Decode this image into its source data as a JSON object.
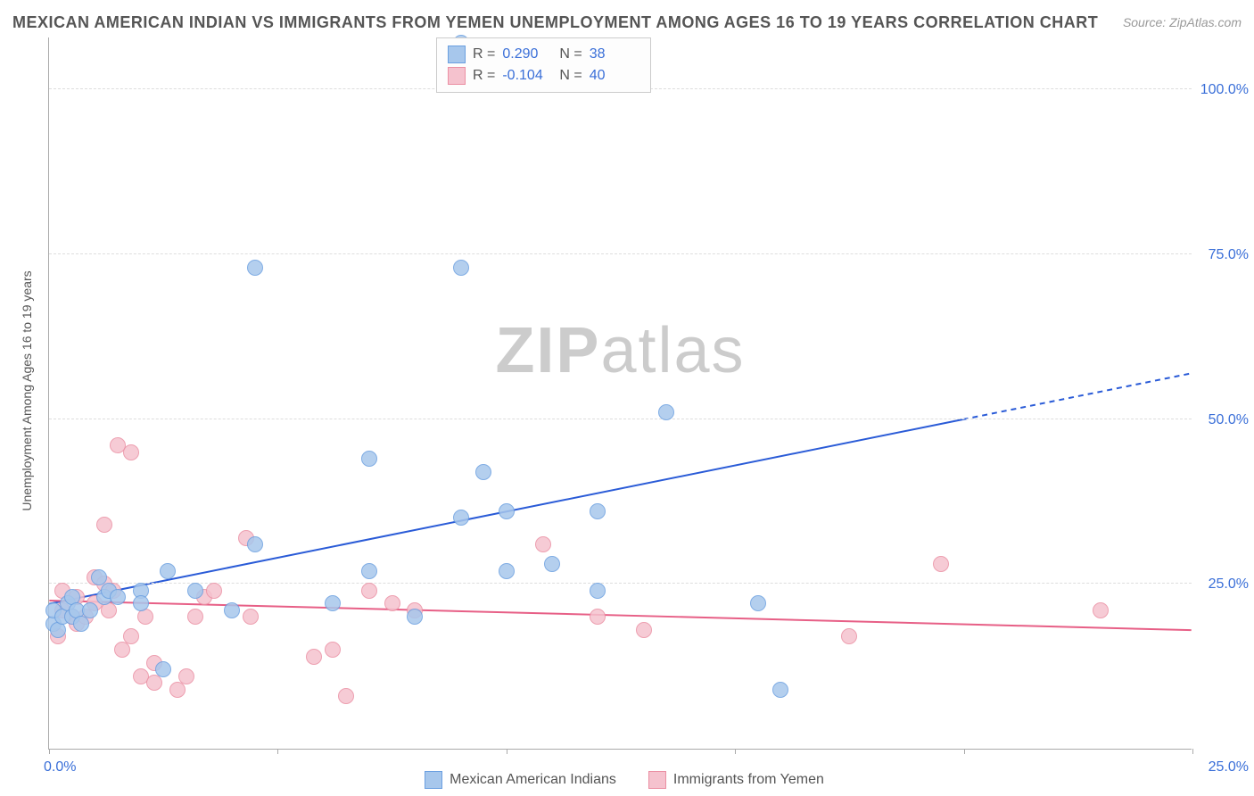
{
  "header": {
    "title": "MEXICAN AMERICAN INDIAN VS IMMIGRANTS FROM YEMEN UNEMPLOYMENT AMONG AGES 16 TO 19 YEARS CORRELATION CHART",
    "source": "Source: ZipAtlas.com"
  },
  "watermark": {
    "zip": "ZIP",
    "atlas": "atlas"
  },
  "axes": {
    "ylabel": "Unemployment Among Ages 16 to 19 years",
    "xlim": [
      0,
      25
    ],
    "ylim": [
      0,
      108
    ],
    "ytick_labels": [
      "25.0%",
      "50.0%",
      "75.0%",
      "100.0%"
    ],
    "ytick_values": [
      25,
      50,
      75,
      100
    ],
    "xtick_values": [
      0,
      5,
      10,
      15,
      20,
      25
    ],
    "xtick_label_left": "0.0%",
    "xtick_label_right": "25.0%"
  },
  "colors": {
    "series_a_fill": "#a7c7ec",
    "series_a_stroke": "#6a9fe0",
    "series_a_line": "#2a5bd7",
    "series_b_fill": "#f5c2ce",
    "series_b_stroke": "#eb8fa3",
    "series_b_line": "#e75f86",
    "grid": "#dddddd",
    "tick_text": "#3a6fd8",
    "text": "#555555"
  },
  "legend_top": {
    "rows": [
      {
        "swatch": "a",
        "r_label": "R =",
        "r": "0.290",
        "n_label": "N =",
        "n": "38"
      },
      {
        "swatch": "b",
        "r_label": "R =",
        "r": "-0.104",
        "n_label": "N =",
        "n": "40"
      }
    ]
  },
  "legend_bottom": {
    "items": [
      {
        "swatch": "a",
        "label": "Mexican American Indians"
      },
      {
        "swatch": "b",
        "label": "Immigrants from Yemen"
      }
    ]
  },
  "series": {
    "a": {
      "marker_size": 18,
      "points": [
        [
          0.1,
          19
        ],
        [
          0.1,
          21
        ],
        [
          0.2,
          18
        ],
        [
          0.3,
          20
        ],
        [
          0.4,
          22
        ],
        [
          0.5,
          20
        ],
        [
          0.5,
          23
        ],
        [
          0.6,
          21
        ],
        [
          0.7,
          19
        ],
        [
          0.9,
          21
        ],
        [
          1.1,
          26
        ],
        [
          1.2,
          23
        ],
        [
          1.3,
          24
        ],
        [
          1.5,
          23
        ],
        [
          2.0,
          24
        ],
        [
          2.0,
          22
        ],
        [
          2.5,
          12
        ],
        [
          2.6,
          27
        ],
        [
          3.2,
          24
        ],
        [
          4.0,
          21
        ],
        [
          4.5,
          31
        ],
        [
          4.5,
          73
        ],
        [
          6.2,
          22
        ],
        [
          7.0,
          27
        ],
        [
          7.0,
          44
        ],
        [
          8.0,
          20
        ],
        [
          9.5,
          42
        ],
        [
          9.0,
          35
        ],
        [
          9.0,
          73
        ],
        [
          9.0,
          107
        ],
        [
          10.0,
          36
        ],
        [
          10.0,
          27
        ],
        [
          11.0,
          28
        ],
        [
          12.0,
          36
        ],
        [
          12.0,
          24
        ],
        [
          13.5,
          51
        ],
        [
          15.5,
          22
        ],
        [
          16.0,
          9
        ]
      ],
      "trend": {
        "y_at_x0": 22,
        "y_at_x20": 50,
        "y_at_x25": 57,
        "dash_from_x": 20
      }
    },
    "b": {
      "marker_size": 18,
      "points": [
        [
          0.2,
          17
        ],
        [
          0.3,
          24
        ],
        [
          0.3,
          21
        ],
        [
          0.5,
          20
        ],
        [
          0.6,
          19
        ],
        [
          0.6,
          23
        ],
        [
          0.8,
          20
        ],
        [
          1.0,
          26
        ],
        [
          1.0,
          22
        ],
        [
          1.2,
          25
        ],
        [
          1.5,
          46
        ],
        [
          1.2,
          34
        ],
        [
          1.3,
          21
        ],
        [
          1.4,
          24
        ],
        [
          1.6,
          15
        ],
        [
          1.8,
          45
        ],
        [
          1.8,
          17
        ],
        [
          2.0,
          11
        ],
        [
          2.3,
          13
        ],
        [
          2.3,
          10
        ],
        [
          2.1,
          20
        ],
        [
          2.8,
          9
        ],
        [
          3.0,
          11
        ],
        [
          3.2,
          20
        ],
        [
          3.4,
          23
        ],
        [
          3.6,
          24
        ],
        [
          4.3,
          32
        ],
        [
          4.4,
          20
        ],
        [
          5.8,
          14
        ],
        [
          6.2,
          15
        ],
        [
          6.5,
          8
        ],
        [
          7.0,
          24
        ],
        [
          7.5,
          22
        ],
        [
          8.0,
          21
        ],
        [
          10.8,
          31
        ],
        [
          12.0,
          20
        ],
        [
          13.0,
          18
        ],
        [
          17.5,
          17
        ],
        [
          19.5,
          28
        ],
        [
          23.0,
          21
        ]
      ],
      "trend": {
        "y_at_x0": 22.5,
        "y_at_x25": 18
      }
    }
  }
}
